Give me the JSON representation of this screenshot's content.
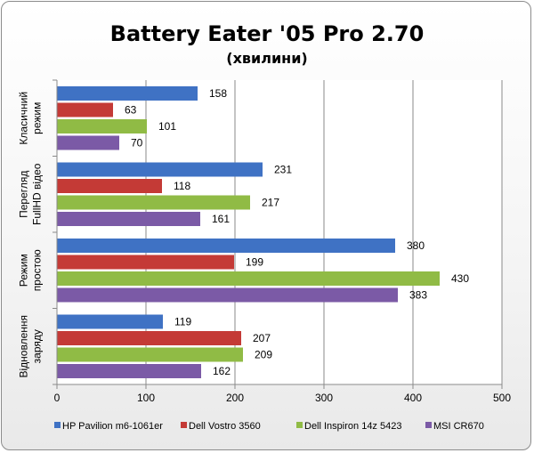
{
  "chart_data": {
    "type": "bar",
    "orientation": "horizontal",
    "title": "Battery Eater '05 Pro 2.70",
    "subtitle": "(хвилини)",
    "categories": [
      [
        "Класичний",
        "режим"
      ],
      [
        "Перегляд",
        "FullHD відео"
      ],
      [
        "Режим",
        "простою"
      ],
      [
        "Відновлення",
        "заряду"
      ]
    ],
    "series": [
      {
        "name": "HP Pavilion m6-1061er",
        "color": "#3f72c4",
        "values": [
          158,
          231,
          380,
          119
        ]
      },
      {
        "name": "Dell Vostro 3560",
        "color": "#c43a36",
        "values": [
          63,
          118,
          199,
          207
        ]
      },
      {
        "name": "Dell Inspiron 14z 5423",
        "color": "#90bb45",
        "values": [
          101,
          217,
          430,
          209
        ]
      },
      {
        "name": "MSI CR670",
        "color": "#7b5aa6",
        "values": [
          70,
          161,
          383,
          162
        ]
      }
    ],
    "xlim": [
      0,
      500
    ],
    "xticks": [
      0,
      100,
      200,
      300,
      400,
      500
    ],
    "grid": true,
    "legend_position": "bottom"
  }
}
